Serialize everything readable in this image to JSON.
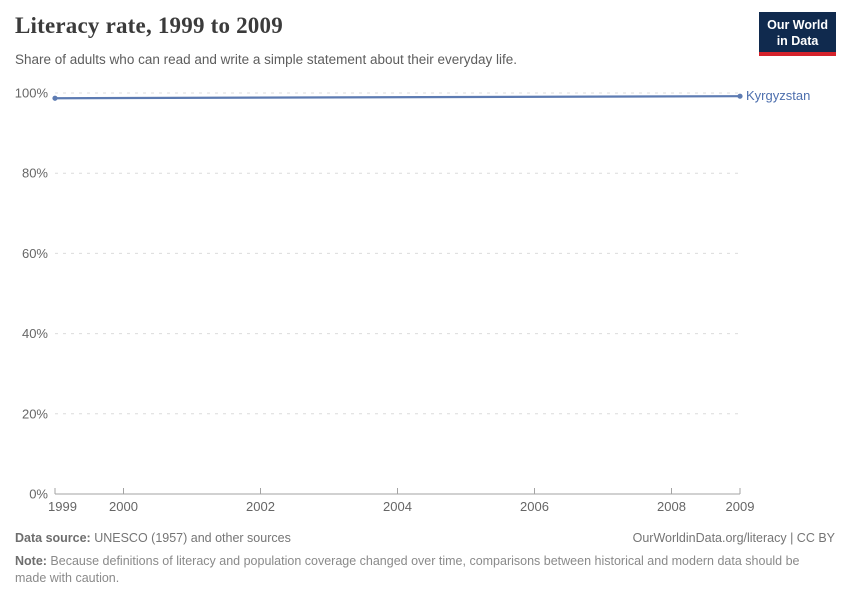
{
  "header": {
    "title": "Literacy rate, 1999 to 2009",
    "subtitle": "Share of adults who can read and write a simple statement about their everyday life.",
    "logo": {
      "line1": "Our World",
      "line2": "in Data",
      "bg": "#102a4e",
      "accent": "#d5222b"
    }
  },
  "chart_data": {
    "type": "line",
    "title": "Literacy rate, 1999 to 2009",
    "xlabel": "",
    "ylabel": "",
    "xlim": [
      1999,
      2009
    ],
    "ylim": [
      0,
      100
    ],
    "x_ticks": [
      1999,
      2000,
      2002,
      2004,
      2006,
      2008,
      2009
    ],
    "y_ticks": [
      0,
      20,
      40,
      60,
      80,
      100
    ],
    "y_tick_suffix": "%",
    "grid": "horizontal-dashed",
    "legend_position": "end-of-line",
    "series": [
      {
        "name": "Kyrgyzstan",
        "x": [
          1999,
          2009
        ],
        "values": [
          98.7,
          99.2
        ],
        "color": "#5d7bb2",
        "label_color": "#4d6fae"
      }
    ],
    "colors": {
      "grid": "#dcdcdc",
      "axis": "#a3a3a3",
      "tick_label": "#666666"
    }
  },
  "footer": {
    "datasource_label": "Data source:",
    "datasource_text": " UNESCO (1957) and other sources",
    "attribution": "OurWorldinData.org/literacy | CC BY",
    "note_label": "Note:",
    "note_text": " Because definitions of literacy and population coverage changed over time, comparisons between historical and modern data should be made with caution."
  }
}
